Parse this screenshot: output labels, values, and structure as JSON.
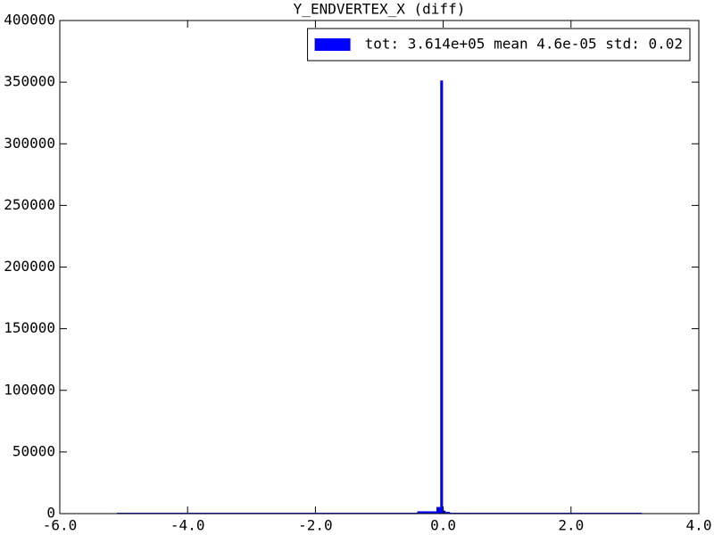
{
  "chart_data": {
    "type": "histogram",
    "title": "Y_ENDVERTEX_X (diff)",
    "bins": [
      -5.1,
      -0.4,
      -0.1,
      -0.04,
      -0.01,
      0.03,
      0.1,
      0.4,
      3.1
    ],
    "series": [
      {
        "name": "tot: 3.614e+05 mean 4.6e-05 std: 0.02",
        "color": "#0000ff",
        "values": [
          300,
          1500,
          5000,
          351000,
          2000,
          1000,
          300,
          300
        ]
      }
    ],
    "xlim": [
      -6,
      4
    ],
    "xticks": [
      {
        "value": -6,
        "label": "-6.0"
      },
      {
        "value": -4,
        "label": "-4.0"
      },
      {
        "value": -2,
        "label": "-2.0"
      },
      {
        "value": 0,
        "label": "0.0"
      },
      {
        "value": 2,
        "label": "2.0"
      },
      {
        "value": 4,
        "label": "4.0"
      }
    ],
    "ylim": [
      0,
      400000
    ],
    "yticks": [
      0,
      50000,
      100000,
      150000,
      200000,
      250000,
      300000,
      350000,
      400000
    ],
    "legend": "upper right"
  }
}
